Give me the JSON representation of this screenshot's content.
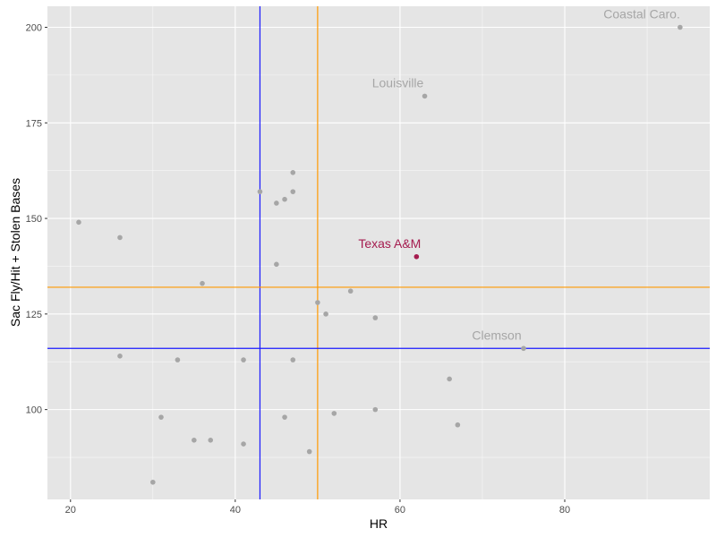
{
  "chart_data": {
    "type": "scatter",
    "xlabel": "HR",
    "ylabel": "Sac Fly/Hit + Stolen Bases",
    "xlim": [
      17.2,
      97.6
    ],
    "ylim": [
      76.5,
      205.5
    ],
    "xticks": [
      20,
      40,
      60,
      80
    ],
    "yticks": [
      100,
      125,
      150,
      175,
      200
    ],
    "grid": true,
    "reference_lines": [
      {
        "axis": "x",
        "value": 43,
        "color": "#1a1aff"
      },
      {
        "axis": "x",
        "value": 50,
        "color": "#ff9900"
      },
      {
        "axis": "y",
        "value": 116,
        "color": "#1a1aff"
      },
      {
        "axis": "y",
        "value": 132,
        "color": "#ff9900"
      }
    ],
    "points": [
      {
        "x": 94,
        "y": 200,
        "label": "Coastal Caro.",
        "highlight": false
      },
      {
        "x": 63,
        "y": 182,
        "label": "Louisville",
        "highlight": false
      },
      {
        "x": 62,
        "y": 140,
        "label": "Texas A&M",
        "highlight": true
      },
      {
        "x": 75,
        "y": 116,
        "label": "Clemson",
        "highlight": false
      },
      {
        "x": 21,
        "y": 149,
        "label": "",
        "highlight": false
      },
      {
        "x": 26,
        "y": 145,
        "label": "",
        "highlight": false
      },
      {
        "x": 36,
        "y": 133,
        "label": "",
        "highlight": false
      },
      {
        "x": 26,
        "y": 114,
        "label": "",
        "highlight": false
      },
      {
        "x": 33,
        "y": 113,
        "label": "",
        "highlight": false
      },
      {
        "x": 41,
        "y": 113,
        "label": "",
        "highlight": false
      },
      {
        "x": 31,
        "y": 98,
        "label": "",
        "highlight": false
      },
      {
        "x": 35,
        "y": 92,
        "label": "",
        "highlight": false
      },
      {
        "x": 37,
        "y": 92,
        "label": "",
        "highlight": false
      },
      {
        "x": 41,
        "y": 91,
        "label": "",
        "highlight": false
      },
      {
        "x": 30,
        "y": 81,
        "label": "",
        "highlight": false
      },
      {
        "x": 43,
        "y": 157,
        "label": "",
        "highlight": false
      },
      {
        "x": 45,
        "y": 154,
        "label": "",
        "highlight": false
      },
      {
        "x": 46,
        "y": 155,
        "label": "",
        "highlight": false
      },
      {
        "x": 47,
        "y": 157,
        "label": "",
        "highlight": false
      },
      {
        "x": 47,
        "y": 162,
        "label": "",
        "highlight": false
      },
      {
        "x": 45,
        "y": 138,
        "label": "",
        "highlight": false
      },
      {
        "x": 50,
        "y": 128,
        "label": "",
        "highlight": false
      },
      {
        "x": 51,
        "y": 125,
        "label": "",
        "highlight": false
      },
      {
        "x": 54,
        "y": 131,
        "label": "",
        "highlight": false
      },
      {
        "x": 57,
        "y": 124,
        "label": "",
        "highlight": false
      },
      {
        "x": 47,
        "y": 113,
        "label": "",
        "highlight": false
      },
      {
        "x": 46,
        "y": 98,
        "label": "",
        "highlight": false
      },
      {
        "x": 49,
        "y": 89,
        "label": "",
        "highlight": false
      },
      {
        "x": 52,
        "y": 99,
        "label": "",
        "highlight": false
      },
      {
        "x": 57,
        "y": 100,
        "label": "",
        "highlight": false
      },
      {
        "x": 66,
        "y": 108,
        "label": "",
        "highlight": false
      },
      {
        "x": 67,
        "y": 96,
        "label": "",
        "highlight": false
      }
    ],
    "colors": {
      "panel_background": "#e5e5e5",
      "grid_major": "#ffffff",
      "point": "#a6a6a6",
      "label": "#a6a6a6",
      "highlight": "#a51c4f"
    }
  }
}
